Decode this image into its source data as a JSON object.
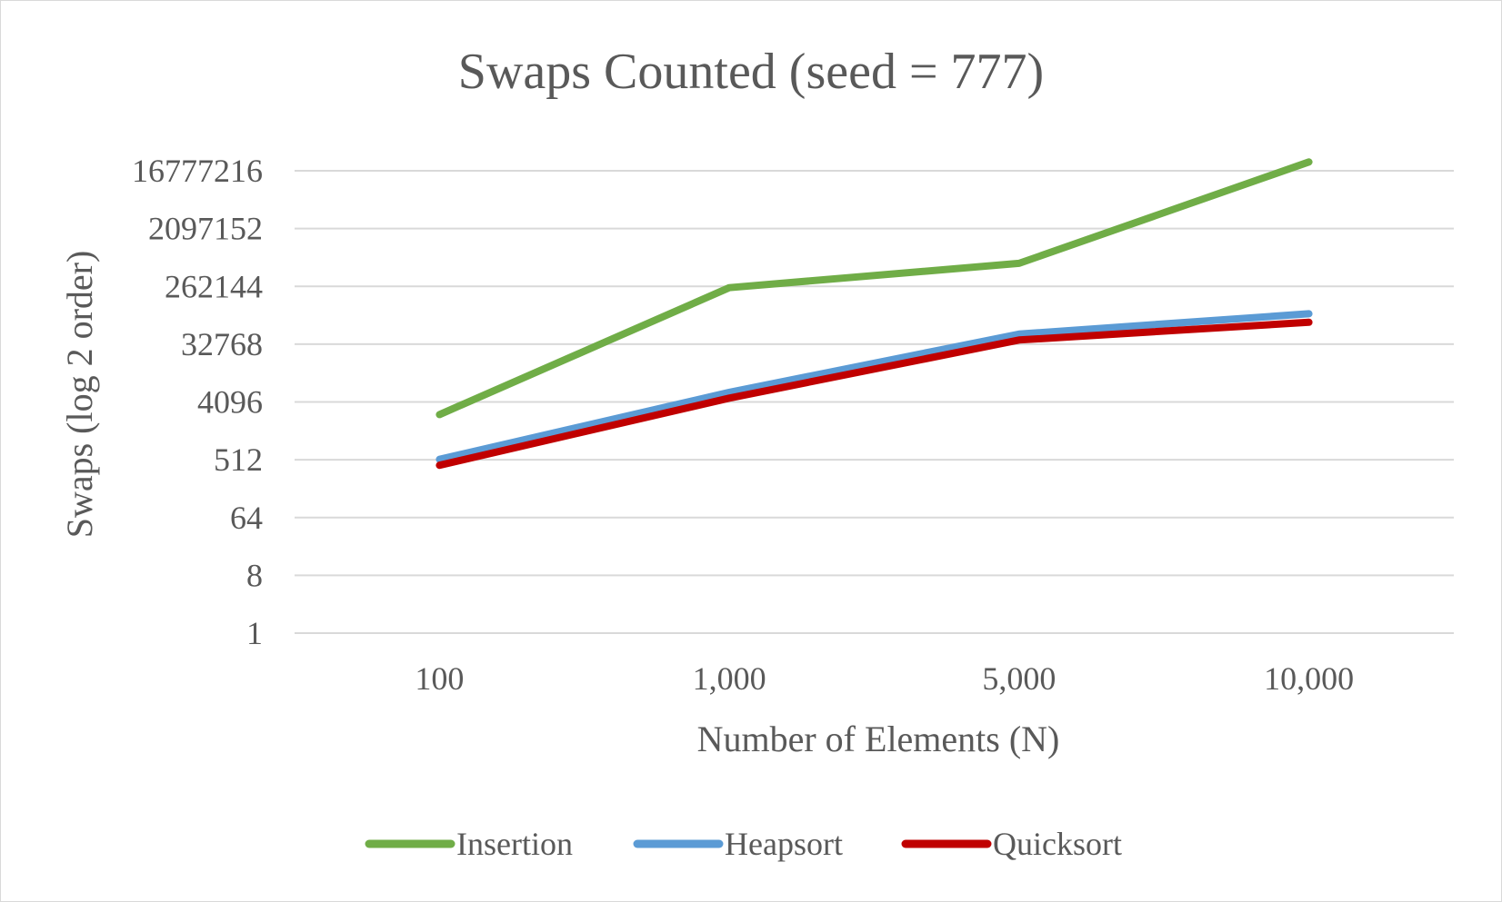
{
  "chart_data": {
    "type": "line",
    "title": "Swaps Counted (seed = 777)",
    "xlabel": "Number of Elements (N)",
    "ylabel": "Swaps (log 2 order)",
    "y_scale": "log2",
    "ylim": [
      1,
      16777216
    ],
    "y_ticks": [
      "1",
      "8",
      "64",
      "512",
      "4096",
      "32768",
      "262144",
      "2097152",
      "16777216"
    ],
    "categories": [
      "100",
      "1,000",
      "5,000",
      "10,000"
    ],
    "series": [
      {
        "name": "Insertion",
        "color": "#70ad47",
        "values": [
          2600,
          250000,
          600000,
          23000000
        ]
      },
      {
        "name": "Heapsort",
        "color": "#5b9bd5",
        "values": [
          520,
          5800,
          47000,
          98000
        ]
      },
      {
        "name": "Quicksort",
        "color": "#c00000",
        "values": [
          420,
          4700,
          38000,
          72000
        ]
      }
    ],
    "grid": true,
    "legend": "bottom"
  }
}
